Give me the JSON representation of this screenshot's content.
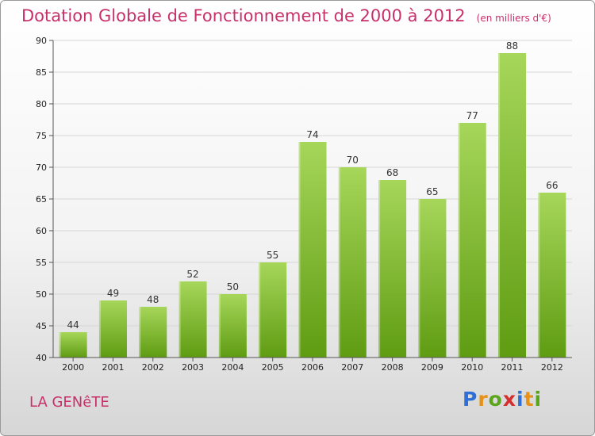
{
  "header": {
    "title": "Dotation Globale de Fonctionnement de 2000 à 2012",
    "unit": "(en milliers d'€)"
  },
  "footer": {
    "commune": "LA GENêTE",
    "brand": [
      "P",
      "r",
      "o",
      "x",
      "i",
      "t",
      "i"
    ]
  },
  "colors": {
    "title": "#c8306a",
    "bar_top": "#a6d65a",
    "bar_bottom": "#5f9c12",
    "grid": "#d6d6d6",
    "axis": "#555555",
    "logo": [
      "#2e6fd8",
      "#e69118",
      "#5aa51a",
      "#d62e2e",
      "#2e6fd8",
      "#e69118",
      "#5aa51a"
    ]
  },
  "chart_data": {
    "type": "bar",
    "title": "Dotation Globale de Fonctionnement de 2000 à 2012",
    "subtitle": "(en milliers d'€)",
    "categories": [
      "2000",
      "2001",
      "2002",
      "2003",
      "2004",
      "2005",
      "2006",
      "2007",
      "2008",
      "2009",
      "2010",
      "2011",
      "2012"
    ],
    "values": [
      44,
      49,
      48,
      52,
      50,
      55,
      74,
      70,
      68,
      65,
      77,
      88,
      66
    ],
    "xlabel": "",
    "ylabel": "",
    "ylim": [
      40,
      90
    ],
    "yticks": [
      40,
      45,
      50,
      55,
      60,
      65,
      70,
      75,
      80,
      85,
      90
    ],
    "grid": true,
    "data_labels": true
  }
}
